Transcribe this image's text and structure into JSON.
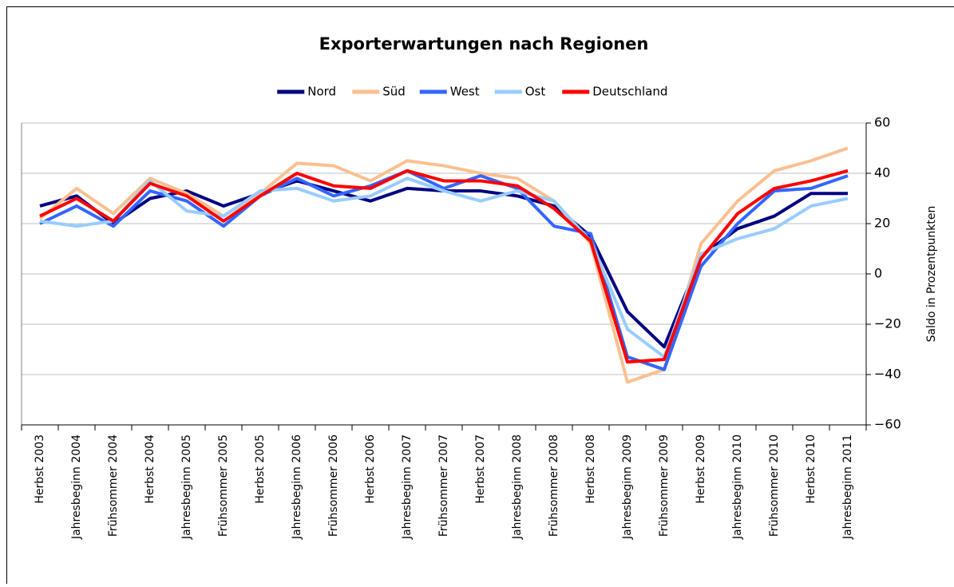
{
  "chart_data": {
    "type": "line",
    "title": "Exporterwartungen nach Regionen",
    "y_axis_label": "Saldo in Prozentpunkten",
    "categories": [
      "Herbst 2003",
      "Jahresbeginn 2004",
      "Frühsommer 2004",
      "Herbst 2004",
      "Jahresbeginn 2005",
      "Frühsommer 2005",
      "Herbst 2005",
      "Jahresbeginn 2006",
      "Frühsommer 2006",
      "Herbst 2006",
      "Jahresbeginn 2007",
      "Frühsommer 2007",
      "Herbst 2007",
      "Jahresbeginn 2008",
      "Frühsommer 2008",
      "Herbst 2008",
      "Jahresbeginn 2009",
      "Frühsommer 2009",
      "Herbst 2009",
      "Jahresbeginn 2010",
      "Frühsommer 2010",
      "Herbst 2010",
      "Jahresbeginn 2011"
    ],
    "series": [
      {
        "name": "Nord",
        "color": "#000080",
        "values": [
          27,
          31,
          20,
          30,
          33,
          27,
          32,
          37,
          33,
          29,
          34,
          33,
          33,
          31,
          27,
          15,
          -15,
          -29,
          7,
          18,
          23,
          32,
          32
        ]
      },
      {
        "name": "Süd",
        "color": "#fac090",
        "values": [
          22,
          34,
          24,
          38,
          32,
          23,
          32,
          44,
          43,
          37,
          45,
          43,
          40,
          38,
          29,
          12,
          -43,
          -38,
          12,
          29,
          41,
          45,
          50
        ]
      },
      {
        "name": "West",
        "color": "#3366ff",
        "values": [
          20,
          27,
          19,
          33,
          29,
          19,
          31,
          38,
          31,
          35,
          41,
          34,
          39,
          34,
          19,
          16,
          -33,
          -38,
          3,
          20,
          33,
          34,
          39
        ]
      },
      {
        "name": "Ost",
        "color": "#99ccff",
        "values": [
          21,
          19,
          21,
          37,
          25,
          23,
          33,
          34,
          29,
          31,
          38,
          33,
          29,
          33,
          29,
          13,
          -22,
          -33,
          8,
          14,
          18,
          27,
          30
        ]
      },
      {
        "name": "Deutschland",
        "color": "#ff0000",
        "values": [
          23,
          30,
          21,
          36,
          31,
          21,
          31,
          40,
          35,
          34,
          41,
          37,
          37,
          35,
          26,
          13,
          -35,
          -34,
          6,
          24,
          34,
          37,
          41
        ]
      }
    ],
    "ylim": [
      -60,
      60
    ],
    "yticks": [
      {
        "value": -60,
        "label": "−60"
      },
      {
        "value": -40,
        "label": "−40"
      },
      {
        "value": -20,
        "label": "−20"
      },
      0,
      20,
      40,
      60
    ],
    "y_axis_side": "right",
    "grid": true,
    "legend": "top"
  }
}
